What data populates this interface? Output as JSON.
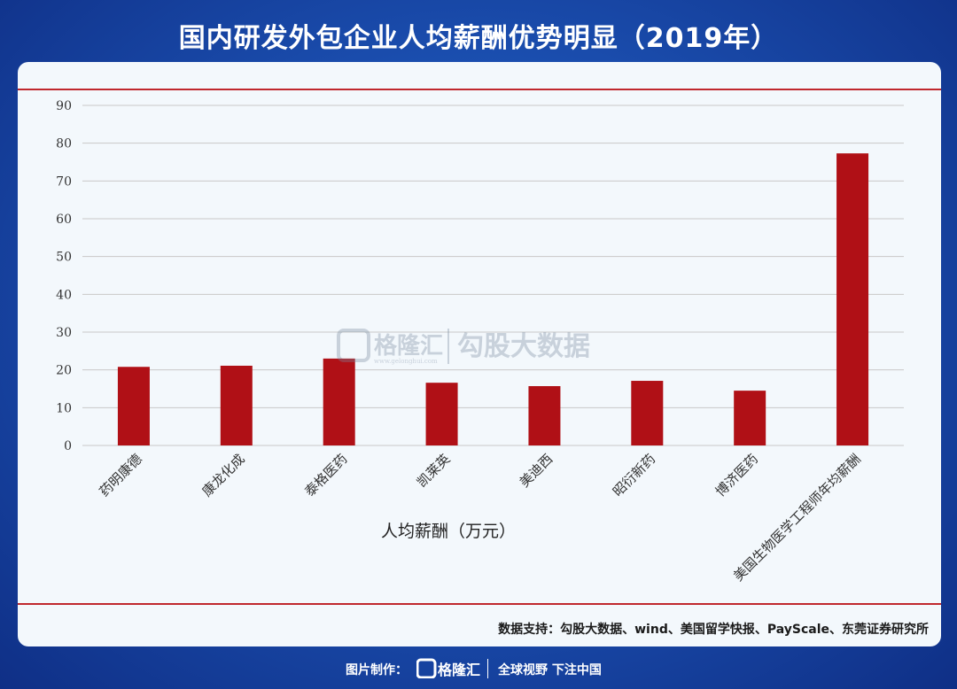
{
  "header": {
    "title": "国内研发外包企业人均薪酬优势明显（2019年）"
  },
  "source": "数据支持：勾股大数据、wind、美国留学快报、PayScale、东莞证券研究所",
  "watermark": {
    "brand": "格隆汇",
    "sub": "勾股大数据",
    "url": "www.gelonghui.com"
  },
  "footer": {
    "made_by": "图片制作：",
    "brand": "格隆汇",
    "slogan": "全球视野 下注中国"
  },
  "colors": {
    "bar": "#b01016",
    "redline": "#c0282d",
    "accent": "#1b4fb0"
  },
  "chart_data": {
    "type": "bar",
    "categories": [
      "药明康德",
      "康龙化成",
      "泰格医药",
      "凯莱英",
      "美迪西",
      "昭衍新药",
      "博济医药",
      "美国生物医学工程师年均薪酬"
    ],
    "values": [
      20.8,
      21.1,
      23.0,
      16.6,
      15.7,
      17.1,
      14.5,
      77.3
    ],
    "yticks": [
      0,
      10,
      20,
      30,
      40,
      50,
      60,
      70,
      80,
      90
    ],
    "ylim": [
      0,
      90
    ],
    "xlabel": "人均薪酬（万元）",
    "grid": true
  }
}
